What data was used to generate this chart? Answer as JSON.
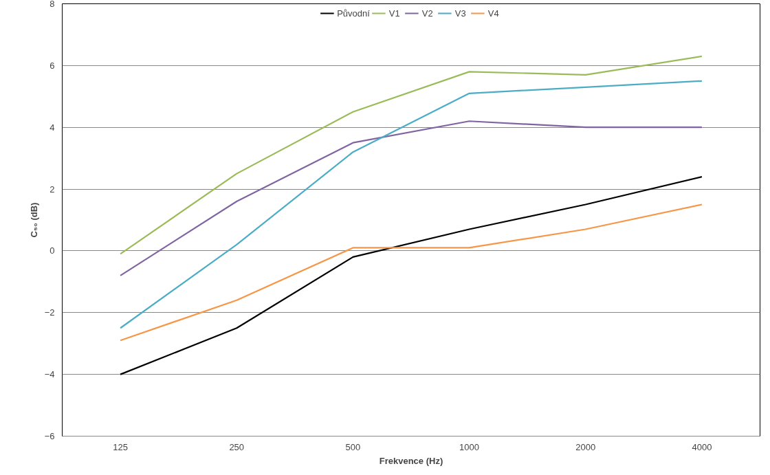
{
  "chart_data": {
    "type": "line",
    "xlabel": "Frekvence (Hz)",
    "ylabel": "C₅₀ (dB)",
    "categories": [
      "125",
      "250",
      "500",
      "1000",
      "2000",
      "4000"
    ],
    "series": [
      {
        "name": "Původní",
        "color": "#000000",
        "values": [
          -4.0,
          -2.5,
          -0.2,
          0.7,
          1.5,
          2.4
        ]
      },
      {
        "name": "V1",
        "color": "#9bbb59",
        "values": [
          -0.1,
          2.5,
          4.5,
          5.8,
          5.7,
          6.3
        ]
      },
      {
        "name": "V2",
        "color": "#8064a2",
        "values": [
          -0.8,
          1.6,
          3.5,
          4.2,
          4.0,
          4.0
        ]
      },
      {
        "name": "V3",
        "color": "#4bacc6",
        "values": [
          -2.5,
          0.2,
          3.2,
          5.1,
          5.3,
          5.5
        ]
      },
      {
        "name": "V4",
        "color": "#f79646",
        "values": [
          -2.9,
          -1.6,
          0.1,
          0.1,
          0.7,
          1.5
        ]
      }
    ],
    "ylim": [
      -6,
      8
    ],
    "yticks": [
      -6,
      -4,
      -2,
      0,
      2,
      4,
      6,
      8
    ],
    "grid": "y",
    "legend": "top",
    "marker": "none",
    "line_style": "solid"
  }
}
